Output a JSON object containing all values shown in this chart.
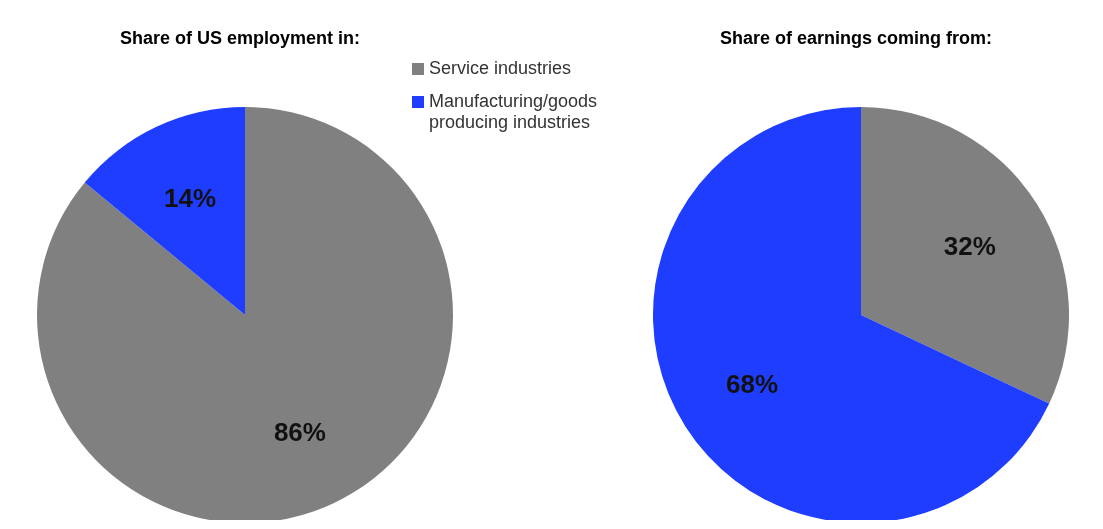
{
  "chart_data": [
    {
      "type": "pie",
      "title": "Share of US employment in:",
      "categories": [
        "Service industries",
        "Manufacturing/goods producing industries"
      ],
      "values": [
        86,
        14
      ],
      "colors": [
        "#808080",
        "#1f3dff"
      ],
      "data_labels": true,
      "value_labels": [
        "86%",
        "14%"
      ],
      "legend": "top right"
    },
    {
      "type": "pie",
      "title": "Share of earnings coming from:",
      "values": [
        32,
        68
      ],
      "colors": [
        "#808080",
        "#1f3dff"
      ],
      "data_labels": true,
      "value_labels": [
        "32%",
        "68%"
      ]
    }
  ]
}
